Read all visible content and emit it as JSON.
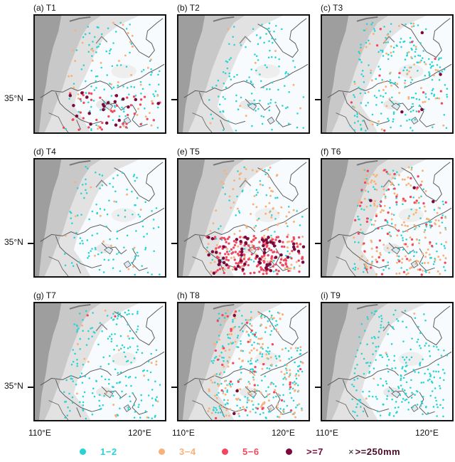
{
  "panels": [
    {
      "id": "T1",
      "label": "(a) T1",
      "counts": [
        110,
        40,
        45,
        20
      ]
    },
    {
      "id": "T2",
      "label": "(b) T2",
      "counts": [
        120,
        8,
        0,
        0
      ]
    },
    {
      "id": "T3",
      "label": "(c) T3",
      "counts": [
        200,
        55,
        12,
        4
      ]
    },
    {
      "id": "T4",
      "label": "(d) T4",
      "counts": [
        115,
        14,
        0,
        0
      ]
    },
    {
      "id": "T5",
      "label": "(e) T5",
      "counts": [
        60,
        110,
        180,
        60
      ]
    },
    {
      "id": "T6",
      "label": "(f) T6",
      "counts": [
        120,
        160,
        60,
        3
      ]
    },
    {
      "id": "T7",
      "label": "(g) T7",
      "counts": [
        190,
        18,
        2,
        0
      ]
    },
    {
      "id": "T8",
      "label": "(h) T8",
      "counts": [
        240,
        160,
        35,
        3
      ]
    },
    {
      "id": "T9",
      "label": "(i) T9",
      "counts": [
        230,
        4,
        0,
        0
      ]
    }
  ],
  "lat_label": "35°N",
  "lon_labels": [
    "110°E",
    "120°E"
  ],
  "legend": {
    "items": [
      {
        "label": "1−2",
        "color": "#29d3d3"
      },
      {
        "label": "3−4",
        "color": "#f7b27a"
      },
      {
        "label": "5−6",
        "color": "#f2485f"
      },
      {
        "label": ">=7",
        "color": "#7a0a3c"
      }
    ],
    "extreme_label": ">=250mm",
    "extreme_symbol": "×"
  },
  "colors": {
    "plain": "#f7fbfd",
    "terrain_light": "#e2e2e2",
    "terrain_mid": "#c8c8c8",
    "terrain_dark": "#9e9e9e",
    "boundary": "#5a5a5a"
  }
}
